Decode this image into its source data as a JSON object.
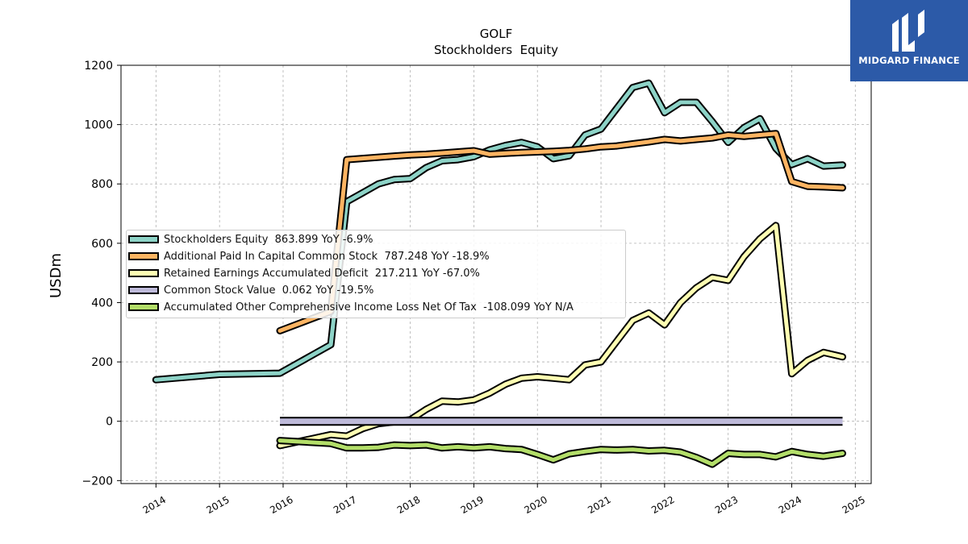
{
  "chart_data": {
    "type": "line",
    "title": "GOLF",
    "subtitle": "Stockholders  Equity",
    "ylabel": "USDm",
    "xlabel": "",
    "xlim": [
      2013.45,
      2025.25
    ],
    "ylim": [
      -210,
      1200
    ],
    "yticks": [
      -200,
      0,
      200,
      400,
      600,
      800,
      1000,
      1200
    ],
    "ytick_labels": [
      "−200",
      "0",
      "200",
      "400",
      "600",
      "800",
      "1000",
      "1200"
    ],
    "xticks": [
      2014,
      2015,
      2016,
      2017,
      2018,
      2019,
      2020,
      2021,
      2022,
      2023,
      2024,
      2025
    ],
    "xtick_labels": [
      "2014",
      "2015",
      "2016",
      "2017",
      "2018",
      "2019",
      "2020",
      "2021",
      "2022",
      "2023",
      "2024",
      "2025"
    ],
    "grid": true,
    "legend_position": "center-left",
    "series": [
      {
        "name": "Stockholders Equity  863.899 YoY -6.9%",
        "color": "#8dd3c7",
        "points": [
          [
            2014.0,
            140
          ],
          [
            2015.0,
            158
          ],
          [
            2015.95,
            162
          ],
          [
            2016.75,
            258
          ],
          [
            2017.0,
            740
          ],
          [
            2017.25,
            770
          ],
          [
            2017.5,
            800
          ],
          [
            2017.75,
            815
          ],
          [
            2018.0,
            818
          ],
          [
            2018.25,
            855
          ],
          [
            2018.5,
            878
          ],
          [
            2018.75,
            882
          ],
          [
            2019.0,
            892
          ],
          [
            2019.25,
            915
          ],
          [
            2019.5,
            930
          ],
          [
            2019.75,
            940
          ],
          [
            2020.0,
            925
          ],
          [
            2020.25,
            885
          ],
          [
            2020.5,
            895
          ],
          [
            2020.75,
            965
          ],
          [
            2021.0,
            985
          ],
          [
            2021.25,
            1055
          ],
          [
            2021.5,
            1125
          ],
          [
            2021.75,
            1140
          ],
          [
            2022.0,
            1040
          ],
          [
            2022.25,
            1075
          ],
          [
            2022.5,
            1075
          ],
          [
            2022.75,
            1010
          ],
          [
            2023.0,
            940
          ],
          [
            2023.25,
            990
          ],
          [
            2023.5,
            1020
          ],
          [
            2023.75,
            920
          ],
          [
            2024.0,
            865
          ],
          [
            2024.25,
            885
          ],
          [
            2024.5,
            860
          ],
          [
            2024.8,
            864
          ]
        ]
      },
      {
        "name": "Additional Paid In Capital Common Stock  787.248 YoY -18.9%",
        "color": "#fdb462",
        "points": [
          [
            2015.95,
            305
          ],
          [
            2016.75,
            370
          ],
          [
            2017.0,
            882
          ],
          [
            2017.25,
            886
          ],
          [
            2017.5,
            890
          ],
          [
            2017.75,
            894
          ],
          [
            2018.0,
            898
          ],
          [
            2018.25,
            900
          ],
          [
            2018.5,
            904
          ],
          [
            2018.75,
            908
          ],
          [
            2019.0,
            912
          ],
          [
            2019.25,
            900
          ],
          [
            2019.5,
            903
          ],
          [
            2019.75,
            906
          ],
          [
            2020.0,
            908
          ],
          [
            2020.25,
            910
          ],
          [
            2020.5,
            913
          ],
          [
            2020.75,
            918
          ],
          [
            2021.0,
            925
          ],
          [
            2021.25,
            928
          ],
          [
            2021.5,
            935
          ],
          [
            2021.75,
            942
          ],
          [
            2022.0,
            950
          ],
          [
            2022.25,
            945
          ],
          [
            2022.5,
            950
          ],
          [
            2022.75,
            955
          ],
          [
            2023.0,
            965
          ],
          [
            2023.25,
            960
          ],
          [
            2023.5,
            965
          ],
          [
            2023.75,
            970
          ],
          [
            2024.0,
            808
          ],
          [
            2024.25,
            792
          ],
          [
            2024.5,
            790
          ],
          [
            2024.8,
            787
          ]
        ]
      },
      {
        "name": "Retained Earnings Accumulated Deficit  217.211 YoY -67.0%",
        "color": "#ffffb3",
        "points": [
          [
            2015.95,
            -82
          ],
          [
            2016.75,
            -45
          ],
          [
            2017.0,
            -50
          ],
          [
            2017.25,
            -25
          ],
          [
            2017.5,
            -8
          ],
          [
            2017.75,
            -2
          ],
          [
            2018.0,
            5
          ],
          [
            2018.25,
            40
          ],
          [
            2018.5,
            68
          ],
          [
            2018.75,
            65
          ],
          [
            2019.0,
            72
          ],
          [
            2019.25,
            95
          ],
          [
            2019.5,
            125
          ],
          [
            2019.75,
            145
          ],
          [
            2020.0,
            150
          ],
          [
            2020.25,
            145
          ],
          [
            2020.5,
            140
          ],
          [
            2020.75,
            190
          ],
          [
            2021.0,
            200
          ],
          [
            2021.25,
            270
          ],
          [
            2021.5,
            340
          ],
          [
            2021.75,
            365
          ],
          [
            2022.0,
            325
          ],
          [
            2022.25,
            400
          ],
          [
            2022.5,
            450
          ],
          [
            2022.75,
            485
          ],
          [
            2023.0,
            475
          ],
          [
            2023.25,
            555
          ],
          [
            2023.5,
            615
          ],
          [
            2023.75,
            660
          ],
          [
            2024.0,
            160
          ],
          [
            2024.25,
            205
          ],
          [
            2024.5,
            232
          ],
          [
            2024.8,
            217
          ]
        ]
      },
      {
        "name": "Common Stock Value  0.062 YoY -19.5%",
        "color": "#bebada",
        "points": [
          [
            2015.95,
            0.08
          ],
          [
            2024.8,
            0.062
          ]
        ]
      },
      {
        "name": "Accumulated Other Comprehensive Income Loss Net Of Tax  -108.099 YoY N/A",
        "color": "#b3de69",
        "points": [
          [
            2015.95,
            -65
          ],
          [
            2016.75,
            -75
          ],
          [
            2017.0,
            -90
          ],
          [
            2017.25,
            -90
          ],
          [
            2017.5,
            -88
          ],
          [
            2017.75,
            -80
          ],
          [
            2018.0,
            -82
          ],
          [
            2018.25,
            -80
          ],
          [
            2018.5,
            -90
          ],
          [
            2018.75,
            -86
          ],
          [
            2019.0,
            -90
          ],
          [
            2019.25,
            -86
          ],
          [
            2019.5,
            -92
          ],
          [
            2019.75,
            -95
          ],
          [
            2020.0,
            -112
          ],
          [
            2020.25,
            -130
          ],
          [
            2020.5,
            -110
          ],
          [
            2020.75,
            -102
          ],
          [
            2021.0,
            -95
          ],
          [
            2021.25,
            -97
          ],
          [
            2021.5,
            -95
          ],
          [
            2021.75,
            -100
          ],
          [
            2022.0,
            -98
          ],
          [
            2022.25,
            -104
          ],
          [
            2022.5,
            -122
          ],
          [
            2022.75,
            -145
          ],
          [
            2023.0,
            -108
          ],
          [
            2023.25,
            -112
          ],
          [
            2023.5,
            -112
          ],
          [
            2023.75,
            -120
          ],
          [
            2024.0,
            -102
          ],
          [
            2024.25,
            -112
          ],
          [
            2024.5,
            -118
          ],
          [
            2024.8,
            -108
          ]
        ]
      }
    ]
  },
  "logo": {
    "text": "MIDGARD FINANCE",
    "background": "#2c5aa8"
  }
}
